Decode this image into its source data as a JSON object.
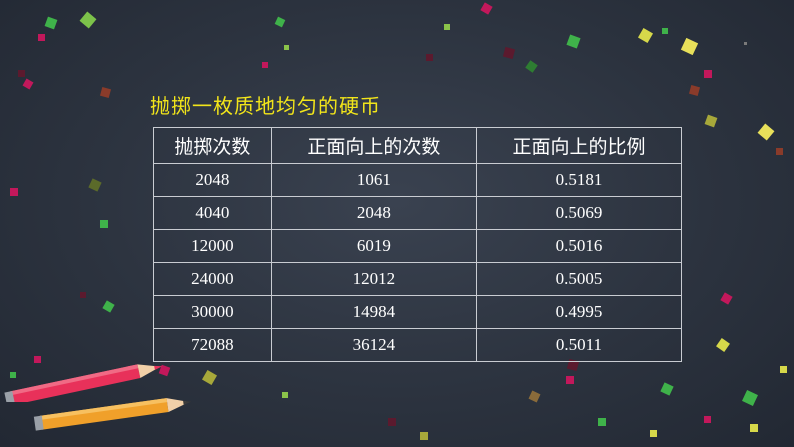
{
  "heading": "抛掷一枚质地均匀的硬币",
  "table": {
    "headers": [
      "抛掷次数",
      "正面向上的次数",
      "正面向上的比例"
    ],
    "rows": [
      [
        "2048",
        "1061",
        "0.5181"
      ],
      [
        "4040",
        "2048",
        "0.5069"
      ],
      [
        "12000",
        "6019",
        "0.5016"
      ],
      [
        "24000",
        "12012",
        "0.5005"
      ],
      [
        "30000",
        "14984",
        "0.4995"
      ],
      [
        "72088",
        "36124",
        "0.5011"
      ]
    ]
  },
  "colors": {
    "background": "#2c333f",
    "heading": "#f2e51a",
    "text": "#ffffff",
    "grid": "#c9ccd2",
    "confetti": [
      "#3fb24a",
      "#d6d84a",
      "#c2185b",
      "#8bc34a",
      "#e8c53a"
    ],
    "pencil_red": "#e8315a",
    "pencil_orange": "#f0a02a"
  },
  "decorations": [
    "confetti",
    "red-pencil",
    "orange-pencil"
  ]
}
